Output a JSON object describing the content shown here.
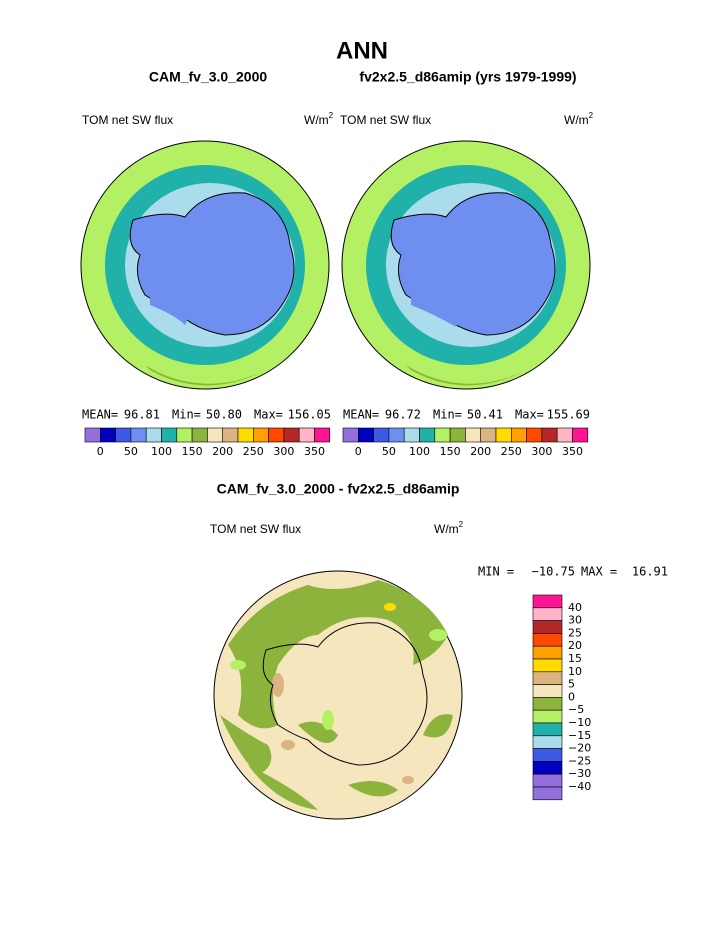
{
  "title": "ANN",
  "panels": [
    {
      "case": "CAM_fv_3.0_2000",
      "variable": "TOM net SW flux",
      "units": "W/m",
      "units_sup": "2",
      "mean_label": "MEAN=",
      "mean": "96.81",
      "min_label": "Min=",
      "min": "50.80",
      "max_label": "Max=",
      "max": "156.05"
    },
    {
      "case": "fv2x2.5_d86amip (yrs 1979-1999)",
      "variable": "TOM net SW flux",
      "units": "W/m",
      "units_sup": "2",
      "mean_label": "MEAN=",
      "mean": "96.72",
      "min_label": "Min=",
      "min": "50.41",
      "max_label": "Max=",
      "max": "155.69"
    }
  ],
  "colorbar": {
    "colors": [
      "#9370db",
      "#0000c0",
      "#3c5ae6",
      "#6e8ff0",
      "#aadcec",
      "#20b2aa",
      "#b4f064",
      "#8cb43c",
      "#f5e6be",
      "#dcb482",
      "#ffdc00",
      "#ffa000",
      "#ff4800",
      "#b42828",
      "#ffb4c8",
      "#ff1493"
    ],
    "labels": [
      "0",
      "50",
      "100",
      "150",
      "200",
      "250",
      "300",
      "350"
    ]
  },
  "difference": {
    "title": "CAM_fv_3.0_2000 - fv2x2.5_d86amip",
    "variable": "TOM net SW flux",
    "units": "W/m",
    "units_sup": "2",
    "min_label": "MIN =",
    "min": "−10.75",
    "max_label": "MAX =",
    "max": "16.91",
    "colorbar": {
      "colors": [
        "#ff1493",
        "#ffb4c8",
        "#b42828",
        "#ff4800",
        "#ffa000",
        "#ffdc00",
        "#dcb482",
        "#f5e6be",
        "#8cb43c",
        "#b4f064",
        "#20b2aa",
        "#aadcec",
        "#3c5ae6",
        "#0000c0",
        "#9370db",
        "#9370db"
      ],
      "labels": [
        "40",
        "30",
        "25",
        "20",
        "15",
        "10",
        "5",
        "0",
        "−5",
        "−10",
        "−15",
        "−20",
        "−25",
        "−30",
        "−40"
      ]
    }
  }
}
